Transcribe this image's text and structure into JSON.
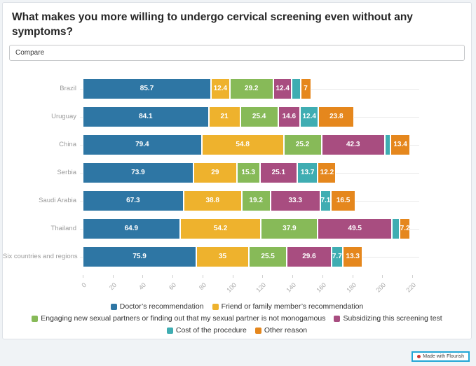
{
  "title": "What makes you more willing to undergo cervical screening even without any symptoms?",
  "compare": {
    "label": "Compare"
  },
  "badge": {
    "label": "Made with Flourish"
  },
  "colors": {
    "badge_border": "#22a6d6",
    "badge_dot": "#d2372f",
    "grid_line": "#e9e9e9",
    "axis_text": "#a9a9a9",
    "category_text": "#9b9b9b"
  },
  "chart_data": {
    "type": "bar",
    "orientation": "horizontal",
    "stacked": true,
    "grid": false,
    "legend_position": "bottom-center",
    "x_axis": {
      "min": 0,
      "max": 220,
      "ticks": [
        0,
        20,
        40,
        60,
        80,
        100,
        120,
        140,
        160,
        180,
        200,
        220
      ]
    },
    "categories": [
      "Brazil",
      "Uruguay",
      "China",
      "Serbia",
      "Saudi Arabia",
      "Thailand",
      "Six countries and regions"
    ],
    "series": [
      {
        "name": "Doctor’s recommendation",
        "color": "#2e76a4",
        "values": [
          85.7,
          84.1,
          79.4,
          73.9,
          67.3,
          64.9,
          75.9
        ],
        "labels": [
          "85.7",
          "84.1",
          "79.4",
          "73.9",
          "67.3",
          "64.9",
          "75.9"
        ]
      },
      {
        "name": "Friend or family member’s recommendation",
        "color": "#eeb22d",
        "values": [
          12.4,
          21,
          54.8,
          29,
          38.8,
          54.2,
          35
        ],
        "labels": [
          "12.4",
          "21",
          "54.8",
          "29",
          "38.8",
          "54.2",
          "35"
        ]
      },
      {
        "name": "Engaging new sexual partners or finding out that my sexual partner is not monogamous",
        "color": "#87ba58",
        "values": [
          29.2,
          25.4,
          25.2,
          15.3,
          19.2,
          37.9,
          25.5
        ],
        "labels": [
          "29.2",
          "25.4",
          "25.2",
          "15.3",
          "19.2",
          "37.9",
          "25.5"
        ]
      },
      {
        "name": "Subsidizing this screening test",
        "color": "#a84d80",
        "values": [
          12.4,
          14.6,
          42.3,
          25.1,
          33.3,
          49.5,
          29.6
        ],
        "labels": [
          "12.4",
          "14.6",
          "42.3",
          "25.1",
          "33.3",
          "49.5",
          "29.6"
        ]
      },
      {
        "name": "Cost of the procedure",
        "color": "#3fadb2",
        "values": [
          5.7,
          12.4,
          3.7,
          13.7,
          7.1,
          5.1,
          7.7
        ],
        "labels": [
          "",
          "12.4",
          "",
          "13.7",
          "7.1",
          "",
          "7.7"
        ]
      },
      {
        "name": "Other reason",
        "color": "#e5871d",
        "values": [
          7,
          23.8,
          13.4,
          12.2,
          16.5,
          7.2,
          13.3
        ],
        "labels": [
          "7",
          "23.8",
          "13.4",
          "12.2",
          "16.5",
          "7.2",
          "13.3"
        ]
      }
    ]
  }
}
